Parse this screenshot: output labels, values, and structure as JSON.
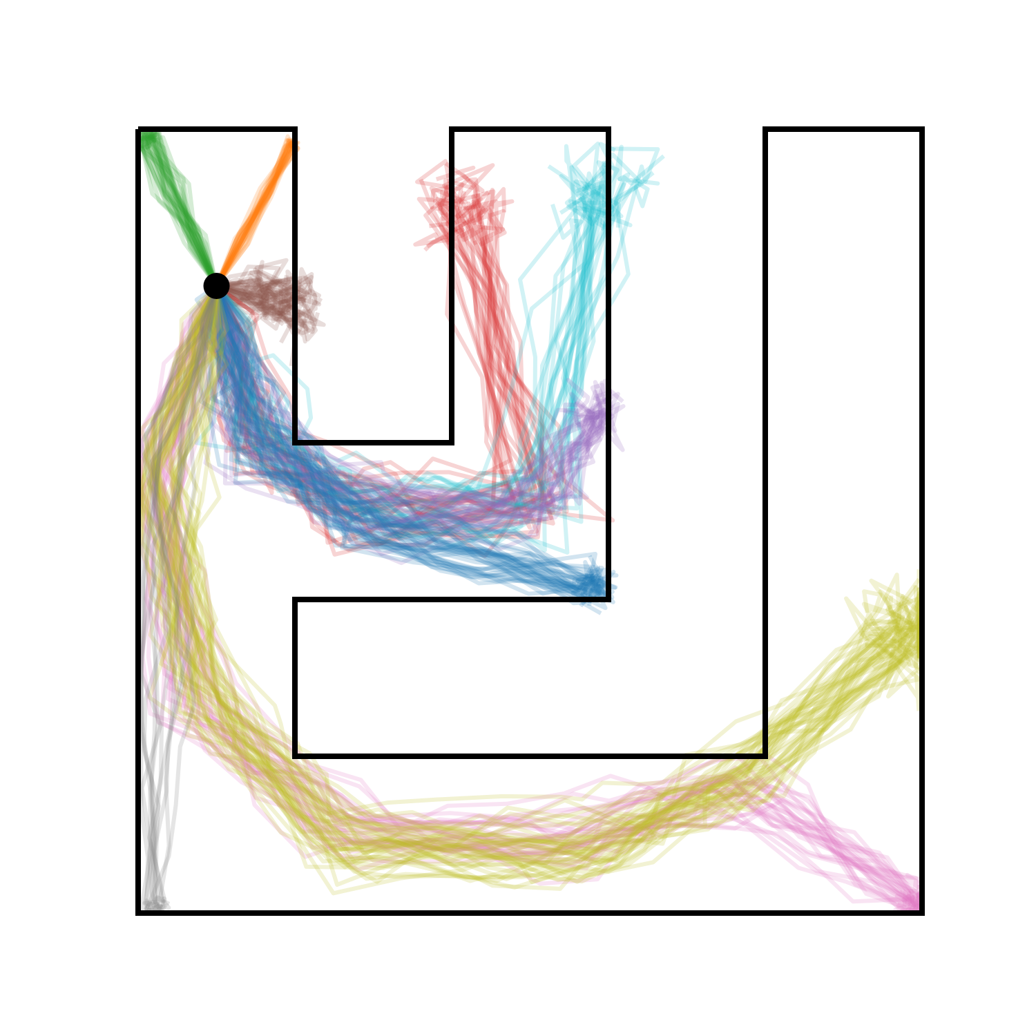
{
  "chart_data": {
    "type": "trajectories",
    "title": "",
    "xlabel": "",
    "ylabel": "",
    "grid": false,
    "legend": "none",
    "axes_visible": false,
    "x_range": [
      0,
      5
    ],
    "y_range": [
      0,
      5
    ],
    "maze": {
      "wall_color": "#000000",
      "wall_segments": [
        [
          [
            0,
            5
          ],
          [
            1,
            5
          ],
          [
            1,
            3
          ],
          [
            2,
            3
          ],
          [
            2,
            5
          ],
          [
            3,
            5
          ],
          [
            3,
            2
          ],
          [
            1,
            2
          ],
          [
            1,
            1
          ],
          [
            4,
            1
          ],
          [
            4,
            5
          ],
          [
            5,
            5
          ],
          [
            5,
            0
          ],
          [
            0,
            0
          ],
          [
            0,
            5
          ]
        ]
      ]
    },
    "start": {
      "x": 0.5,
      "y": 4.0,
      "color": "#000000"
    },
    "series": [
      {
        "color": "#2ca02c",
        "goal": {
          "x": 0.05,
          "y": 4.95
        },
        "count": 30,
        "spread": 0.07,
        "wander": 0.12
      },
      {
        "color": "#ff7f0e",
        "goal": {
          "x": 0.98,
          "y": 4.9
        },
        "count": 24,
        "spread": 0.03,
        "wander": 0.05
      },
      {
        "color": "#8c564b",
        "goal": {
          "x": 0.96,
          "y": 3.9
        },
        "count": 40,
        "spread": 0.22,
        "wander": 0.15
      },
      {
        "color": "#d62728",
        "goal": {
          "x": 2.1,
          "y": 4.5
        },
        "count": 28,
        "spread": 0.25,
        "wander": 0.18
      },
      {
        "color": "#17becf",
        "goal": {
          "x": 2.9,
          "y": 4.6
        },
        "count": 25,
        "spread": 0.3,
        "wander": 0.18
      },
      {
        "color": "#9467bd",
        "goal": {
          "x": 2.92,
          "y": 3.2
        },
        "count": 28,
        "spread": 0.15,
        "wander": 0.12
      },
      {
        "color": "#1f77b4",
        "goal": {
          "x": 2.9,
          "y": 2.1
        },
        "count": 34,
        "spread": 0.12,
        "wander": 0.15
      },
      {
        "color": "#e377c2",
        "goal": {
          "x": 4.97,
          "y": 0.08
        },
        "count": 26,
        "spread": 0.12,
        "wander": 0.13
      },
      {
        "color": "#bcbd22",
        "goal": {
          "x": 4.9,
          "y": 1.8
        },
        "count": 40,
        "spread": 0.35,
        "wander": 0.15
      },
      {
        "color": "#7f7f7f",
        "goal": {
          "x": 0.1,
          "y": 0.05
        },
        "count": 12,
        "spread": 0.08,
        "wander": 0.08
      }
    ]
  }
}
